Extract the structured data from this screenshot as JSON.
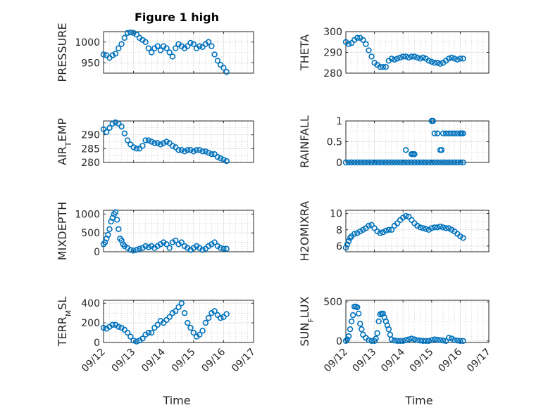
{
  "figure": {
    "title": "Figure 1 high",
    "xlabel": "Time"
  },
  "colors": {
    "marker": "#0072BD",
    "axis": "#262626",
    "grid": "#bdbdbd"
  },
  "chart_data": [
    {
      "type": "scatter",
      "ylabel_parts": [
        "PRESSURE"
      ],
      "xlim": [
        0,
        5
      ],
      "ylim": [
        925,
        1025
      ],
      "yticks": [
        "950",
        "1000"
      ],
      "ytick_values": [
        950,
        1000
      ],
      "xticks": [
        "09/12",
        "09/13",
        "09/14",
        "09/15",
        "09/16",
        "09/17"
      ],
      "show_xticklabels": false,
      "x": [
        0,
        0.1,
        0.2,
        0.3,
        0.4,
        0.5,
        0.6,
        0.7,
        0.8,
        0.9,
        1.0,
        1.1,
        1.2,
        1.3,
        1.4,
        1.5,
        1.6,
        1.7,
        1.8,
        1.9,
        2.0,
        2.1,
        2.2,
        2.3,
        2.4,
        2.5,
        2.6,
        2.7,
        2.8,
        2.9,
        3.0,
        3.1,
        3.2,
        3.3,
        3.4,
        3.5,
        3.6,
        3.7,
        3.8,
        3.9,
        4.0,
        4.1
      ],
      "y": [
        970,
        968,
        962,
        968,
        972,
        985,
        995,
        1010,
        1022,
        1023,
        1022,
        1018,
        1010,
        1005,
        1000,
        985,
        975,
        985,
        990,
        980,
        990,
        985,
        975,
        965,
        985,
        995,
        990,
        985,
        990,
        998,
        995,
        985,
        990,
        988,
        995,
        1000,
        990,
        970,
        955,
        945,
        938,
        928
      ]
    },
    {
      "type": "scatter",
      "ylabel_parts": [
        "THETA"
      ],
      "xlim": [
        0,
        5
      ],
      "ylim": [
        280,
        300
      ],
      "yticks": [
        "280",
        "290",
        "300"
      ],
      "ytick_values": [
        280,
        290,
        300
      ],
      "xticks": [
        "09/12",
        "09/13",
        "09/14",
        "09/15",
        "09/16",
        "09/17"
      ],
      "show_xticklabels": false,
      "x": [
        0,
        0.1,
        0.2,
        0.3,
        0.4,
        0.5,
        0.6,
        0.7,
        0.8,
        0.9,
        1.0,
        1.1,
        1.2,
        1.3,
        1.4,
        1.5,
        1.6,
        1.7,
        1.8,
        1.9,
        2.0,
        2.1,
        2.2,
        2.3,
        2.4,
        2.5,
        2.6,
        2.7,
        2.8,
        2.9,
        3.0,
        3.1,
        3.2,
        3.3,
        3.4,
        3.5,
        3.6,
        3.7,
        3.8,
        3.9,
        4.0,
        4.1
      ],
      "y": [
        295,
        294,
        294.5,
        296,
        297,
        297,
        296,
        294,
        291,
        288,
        285,
        284,
        283,
        283,
        283,
        286,
        287,
        286.5,
        287,
        287.5,
        288,
        288,
        287.5,
        288,
        288,
        287.5,
        287,
        287.5,
        287,
        286,
        285.5,
        285,
        285,
        284.5,
        285,
        286,
        287,
        287.5,
        287,
        286.5,
        287,
        287
      ]
    },
    {
      "type": "scatter",
      "ylabel_parts": [
        "AIR",
        "T",
        "EMP"
      ],
      "xlim": [
        0,
        5
      ],
      "ylim": [
        280,
        295
      ],
      "yticks": [
        "280",
        "285",
        "290"
      ],
      "ytick_values": [
        280,
        285,
        290
      ],
      "xticks": [
        "09/12",
        "09/13",
        "09/14",
        "09/15",
        "09/16",
        "09/17"
      ],
      "show_xticklabels": false,
      "x": [
        0,
        0.1,
        0.2,
        0.3,
        0.4,
        0.5,
        0.6,
        0.7,
        0.8,
        0.9,
        1.0,
        1.1,
        1.2,
        1.3,
        1.4,
        1.5,
        1.6,
        1.7,
        1.8,
        1.9,
        2.0,
        2.1,
        2.2,
        2.3,
        2.4,
        2.5,
        2.6,
        2.7,
        2.8,
        2.9,
        3.0,
        3.1,
        3.2,
        3.3,
        3.4,
        3.5,
        3.6,
        3.7,
        3.8,
        3.9,
        4.0,
        4.1
      ],
      "y": [
        292,
        291,
        292.5,
        294,
        294.5,
        294,
        293,
        290.5,
        288,
        286.5,
        285.5,
        285,
        285,
        286,
        288,
        288,
        287.5,
        287,
        287,
        286.5,
        287,
        287.5,
        287,
        286,
        285.5,
        284.5,
        284.5,
        284,
        284.5,
        284.5,
        284,
        284.5,
        284.5,
        284,
        284,
        283.5,
        283,
        283,
        282,
        281.5,
        281,
        280.5
      ]
    },
    {
      "type": "scatter",
      "ylabel_parts": [
        "RAINFALL"
      ],
      "xlim": [
        0,
        5
      ],
      "ylim": [
        0,
        1
      ],
      "yticks": [
        "0",
        "0.5",
        "1"
      ],
      "ytick_values": [
        0,
        0.5,
        1
      ],
      "xticks": [
        "09/12",
        "09/13",
        "09/14",
        "09/15",
        "09/16",
        "09/17"
      ],
      "show_xticklabels": false,
      "x": [
        0,
        0.1,
        0.2,
        0.3,
        0.4,
        0.5,
        0.6,
        0.7,
        0.8,
        0.9,
        1.0,
        1.1,
        1.2,
        1.3,
        1.4,
        1.5,
        1.6,
        1.7,
        1.8,
        1.9,
        2.0,
        2.1,
        2.2,
        2.3,
        2.4,
        2.5,
        2.6,
        2.7,
        2.8,
        2.9,
        3.0,
        3.1,
        3.2,
        3.3,
        3.4,
        3.5,
        3.6,
        3.7,
        3.8,
        3.9,
        4.0,
        4.1,
        2.1,
        2.3,
        2.3,
        2.35,
        2.4,
        3.0,
        3.05,
        3.1,
        3.2,
        3.3,
        3.35,
        3.4,
        3.5,
        3.6,
        3.7,
        3.8,
        3.9,
        4.0,
        4.05,
        4.1
      ],
      "y": [
        0,
        0,
        0,
        0,
        0,
        0,
        0,
        0,
        0,
        0,
        0,
        0,
        0,
        0,
        0,
        0,
        0,
        0,
        0,
        0,
        0,
        0,
        0,
        0,
        0,
        0,
        0,
        0,
        0,
        0,
        0,
        0,
        0,
        0,
        0,
        0,
        0,
        0,
        0,
        0,
        0,
        0,
        0.3,
        0.2,
        0.2,
        0.2,
        0.2,
        1.0,
        1.0,
        0.7,
        0.7,
        0.3,
        0.3,
        0.7,
        0.7,
        0.7,
        0.7,
        0.7,
        0.7,
        0.7,
        0.7,
        0.7
      ]
    },
    {
      "type": "scatter",
      "ylabel_parts": [
        "MIXDEPTH"
      ],
      "xlim": [
        0,
        5
      ],
      "ylim": [
        0,
        1100
      ],
      "yticks": [
        "0",
        "500",
        "1000"
      ],
      "ytick_values": [
        0,
        500,
        1000
      ],
      "xticks": [
        "09/12",
        "09/13",
        "09/14",
        "09/15",
        "09/16",
        "09/17"
      ],
      "show_xticklabels": false,
      "x": [
        0,
        0.05,
        0.1,
        0.15,
        0.2,
        0.25,
        0.3,
        0.35,
        0.4,
        0.45,
        0.5,
        0.55,
        0.6,
        0.65,
        0.7,
        0.8,
        0.9,
        1.0,
        1.1,
        1.2,
        1.3,
        1.4,
        1.5,
        1.6,
        1.7,
        1.8,
        1.9,
        2.0,
        2.1,
        2.2,
        2.3,
        2.4,
        2.5,
        2.6,
        2.7,
        2.8,
        2.9,
        3.0,
        3.1,
        3.2,
        3.3,
        3.4,
        3.5,
        3.6,
        3.7,
        3.8,
        3.9,
        4.0,
        4.1
      ],
      "y": [
        200,
        250,
        350,
        450,
        600,
        800,
        900,
        1000,
        1050,
        850,
        600,
        350,
        300,
        200,
        150,
        100,
        50,
        30,
        50,
        80,
        100,
        150,
        120,
        150,
        100,
        150,
        200,
        250,
        200,
        100,
        250,
        300,
        200,
        250,
        150,
        100,
        50,
        100,
        150,
        100,
        50,
        80,
        150,
        200,
        250,
        150,
        100,
        80,
        80
      ]
    },
    {
      "type": "scatter",
      "ylabel_parts": [
        "H2OMIXRA"
      ],
      "xlim": [
        0,
        5
      ],
      "ylim": [
        5.3,
        10.4
      ],
      "yticks": [
        "6",
        "8",
        "10"
      ],
      "ytick_values": [
        6,
        8,
        10
      ],
      "xticks": [
        "09/12",
        "09/13",
        "09/14",
        "09/15",
        "09/16",
        "09/17"
      ],
      "show_xticklabels": false,
      "x": [
        0,
        0.05,
        0.1,
        0.15,
        0.2,
        0.3,
        0.4,
        0.5,
        0.6,
        0.7,
        0.8,
        0.9,
        1.0,
        1.1,
        1.2,
        1.3,
        1.4,
        1.5,
        1.6,
        1.7,
        1.8,
        1.9,
        2.0,
        2.1,
        2.2,
        2.3,
        2.4,
        2.5,
        2.6,
        2.7,
        2.8,
        2.9,
        3.0,
        3.1,
        3.2,
        3.3,
        3.4,
        3.5,
        3.6,
        3.7,
        3.8,
        3.9,
        4.0,
        4.1
      ],
      "y": [
        5.8,
        6.2,
        6.6,
        7.0,
        7.2,
        7.5,
        7.6,
        7.8,
        8.0,
        8.2,
        8.5,
        8.6,
        8.2,
        7.8,
        7.6,
        7.7,
        7.9,
        8.0,
        8.0,
        8.5,
        8.8,
        9.2,
        9.5,
        9.7,
        9.6,
        9.2,
        8.8,
        8.5,
        8.3,
        8.2,
        8.1,
        8.0,
        8.2,
        8.3,
        8.3,
        8.4,
        8.3,
        8.2,
        8.2,
        8.0,
        7.8,
        7.5,
        7.2,
        7.0
      ]
    },
    {
      "type": "scatter",
      "ylabel_parts": [
        "TERR",
        "M",
        "SL"
      ],
      "xlim": [
        0,
        5
      ],
      "ylim": [
        0,
        430
      ],
      "yticks": [
        "0",
        "200",
        "400"
      ],
      "ytick_values": [
        0,
        200,
        400
      ],
      "xticks": [
        "09/12",
        "09/13",
        "09/14",
        "09/15",
        "09/16",
        "09/17"
      ],
      "show_xticklabels": true,
      "x": [
        0,
        0.1,
        0.2,
        0.3,
        0.4,
        0.5,
        0.6,
        0.7,
        0.8,
        0.9,
        1.0,
        1.1,
        1.2,
        1.3,
        1.4,
        1.5,
        1.6,
        1.7,
        1.8,
        1.9,
        2.0,
        2.1,
        2.2,
        2.3,
        2.4,
        2.5,
        2.6,
        2.7,
        2.8,
        2.9,
        3.0,
        3.1,
        3.2,
        3.3,
        3.4,
        3.5,
        3.6,
        3.7,
        3.8,
        3.9,
        4.0,
        4.1
      ],
      "y": [
        150,
        140,
        160,
        180,
        180,
        160,
        150,
        130,
        100,
        60,
        20,
        10,
        20,
        40,
        80,
        100,
        100,
        150,
        180,
        220,
        200,
        230,
        260,
        300,
        320,
        360,
        400,
        300,
        200,
        150,
        100,
        60,
        80,
        120,
        200,
        250,
        300,
        320,
        280,
        250,
        260,
        290
      ]
    },
    {
      "type": "scatter",
      "ylabel_parts": [
        "SUN",
        "F",
        "LUX"
      ],
      "xlim": [
        0,
        5
      ],
      "ylim": [
        -20,
        520
      ],
      "yticks": [
        "0",
        "500"
      ],
      "ytick_values": [
        0,
        500
      ],
      "xticks": [
        "09/12",
        "09/13",
        "09/14",
        "09/15",
        "09/16",
        "09/17"
      ],
      "show_xticklabels": true,
      "x": [
        0,
        0.05,
        0.1,
        0.15,
        0.2,
        0.25,
        0.3,
        0.35,
        0.4,
        0.45,
        0.5,
        0.55,
        0.6,
        0.7,
        0.8,
        0.9,
        1.0,
        1.05,
        1.1,
        1.15,
        1.2,
        1.25,
        1.3,
        1.35,
        1.4,
        1.45,
        1.5,
        1.55,
        1.6,
        1.7,
        1.8,
        1.9,
        2.0,
        2.1,
        2.2,
        2.3,
        2.4,
        2.5,
        2.6,
        2.7,
        2.8,
        2.9,
        3.0,
        3.1,
        3.2,
        3.3,
        3.4,
        3.5,
        3.6,
        3.7,
        3.8,
        3.9,
        4.0,
        4.1
      ],
      "y": [
        0,
        20,
        60,
        150,
        250,
        330,
        440,
        440,
        430,
        350,
        220,
        150,
        80,
        40,
        10,
        0,
        0,
        30,
        100,
        250,
        340,
        350,
        350,
        300,
        250,
        200,
        150,
        80,
        20,
        5,
        0,
        0,
        0,
        10,
        20,
        30,
        20,
        10,
        5,
        0,
        0,
        0,
        10,
        20,
        15,
        10,
        5,
        0,
        40,
        30,
        10,
        5,
        0,
        0
      ]
    }
  ]
}
